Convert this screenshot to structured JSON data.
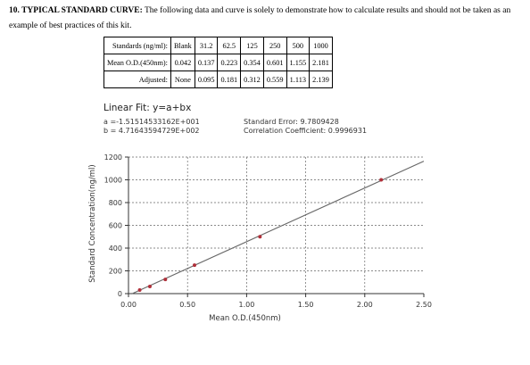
{
  "intro": {
    "heading": "10. TYPICAL STANDARD CURVE:",
    "text": "The following data and curve is solely to demonstrate how to calculate results and should not be taken as an example of best practices of this kit."
  },
  "table": {
    "rows": [
      {
        "label": "Standards (ng/ml):",
        "cells": [
          "Blank",
          "31.2",
          "62.5",
          "125",
          "250",
          "500",
          "1000"
        ]
      },
      {
        "label": "Mean O.D.(450nm):",
        "cells": [
          "0.042",
          "0.137",
          "0.223",
          "0.354",
          "0.601",
          "1.155",
          "2.181"
        ]
      },
      {
        "label": "Adjusted:",
        "cells": [
          "None",
          "0.095",
          "0.181",
          "0.312",
          "0.559",
          "1.113",
          "2.139"
        ]
      }
    ]
  },
  "fit": {
    "title": "Linear Fit: y=a+bx",
    "a": "a =-1.51514533162E+001",
    "b": "b = 4.71643594729E+002",
    "std_error": "Standard Error: 9.7809428",
    "correlation": "Correlation Coefficient: 0.9996931"
  },
  "chart_data": {
    "type": "scatter",
    "xlabel": "Mean O.D.(450nm)",
    "ylabel": "Standard Concentration(ng/ml)",
    "xlim": [
      0,
      2.5
    ],
    "ylim": [
      0,
      1200
    ],
    "x_ticks": [
      "0.00",
      "0.50",
      "1.00",
      "1.50",
      "2.00",
      "2.50"
    ],
    "y_ticks": [
      "0",
      "200",
      "400",
      "600",
      "800",
      "1000",
      "1200"
    ],
    "grid": true,
    "points": {
      "x": [
        0.095,
        0.181,
        0.312,
        0.559,
        1.113,
        2.139
      ],
      "y": [
        31.2,
        62.5,
        125,
        250,
        500,
        1000
      ]
    },
    "fit_line": {
      "intercept": -15.1514533162,
      "slope": 471.643594729
    },
    "colors": {
      "points": "#b0303a",
      "line": "#666666",
      "grid": "#666666"
    }
  }
}
